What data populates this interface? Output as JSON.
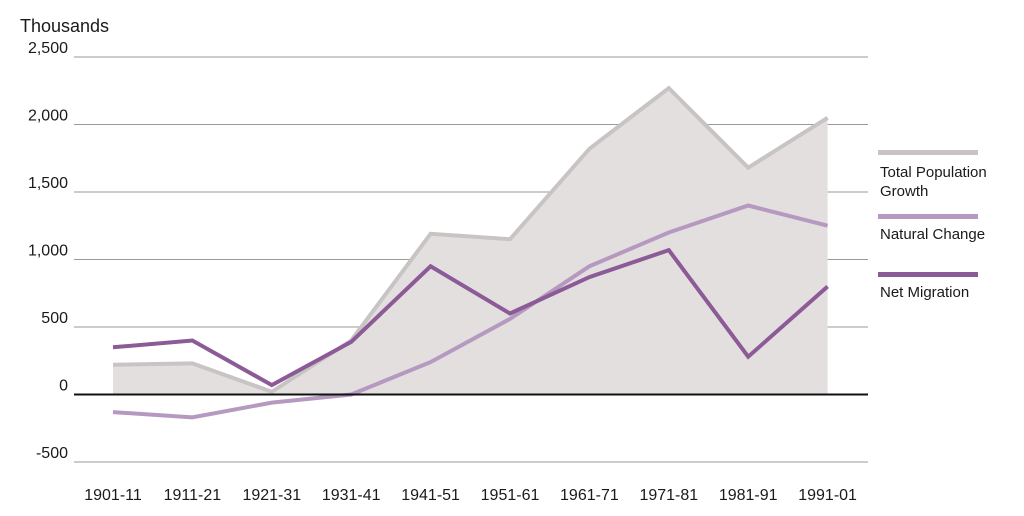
{
  "chart_data": {
    "type": "line",
    "ylabel": "Thousands",
    "xlabel": "",
    "categories": [
      "1901-11",
      "1911-21",
      "1921-31",
      "1931-41",
      "1941-51",
      "1951-61",
      "1961-71",
      "1971-81",
      "1981-91",
      "1991-01"
    ],
    "ylim": [
      -500,
      2500
    ],
    "yticks": [
      -500,
      0,
      500,
      1000,
      1500,
      2000,
      2500
    ],
    "ytick_labels": [
      "-500",
      "0",
      "500",
      "1,000",
      "1,500",
      "2,000",
      "2,500"
    ],
    "grid": true,
    "legend_position": "right",
    "series": [
      {
        "name": "Total Population Growth",
        "style": "area",
        "color": "#c8c4c4",
        "fill": "#e3dfdf",
        "values": [
          220,
          230,
          20,
          400,
          1190,
          1150,
          1820,
          2270,
          1680,
          2050
        ]
      },
      {
        "name": "Natural Change",
        "style": "line",
        "color": "#b599c0",
        "values": [
          -130,
          -170,
          -60,
          0,
          240,
          560,
          950,
          1200,
          1400,
          1250
        ]
      },
      {
        "name": "Net Migration",
        "style": "line",
        "color": "#8b5a97",
        "values": [
          350,
          400,
          70,
          390,
          950,
          600,
          870,
          1070,
          280,
          800
        ]
      }
    ]
  },
  "legend": {
    "items": [
      {
        "label_line1": "Total Population",
        "label_line2": "Growth",
        "color": "#c8c4c4"
      },
      {
        "label_line1": "Natural Change",
        "label_line2": "",
        "color": "#b599c0"
      },
      {
        "label_line1": "Net Migration",
        "label_line2": "",
        "color": "#8b5a97"
      }
    ]
  }
}
